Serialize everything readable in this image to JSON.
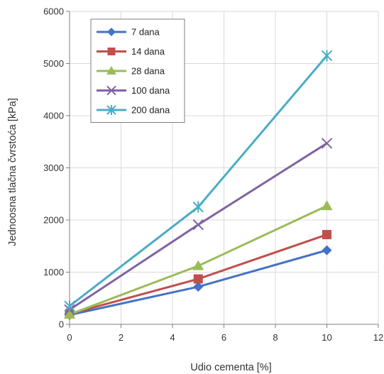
{
  "chart_data": {
    "type": "line",
    "xlabel": "Udio cementa [%]",
    "ylabel": "Jednoosna tlačna čvrstoća [kPa]",
    "xlim": [
      0,
      12
    ],
    "ylim": [
      0,
      6000
    ],
    "xticks": [
      0,
      2,
      4,
      6,
      8,
      10,
      12
    ],
    "yticks": [
      0,
      1000,
      2000,
      3000,
      4000,
      5000,
      6000
    ],
    "grid": true,
    "legend_position": "top-left",
    "x": [
      0,
      5,
      10
    ],
    "series": [
      {
        "name": "7 dana",
        "color": "#4472C4",
        "marker": "diamond",
        "values": [
          180,
          720,
          1420
        ]
      },
      {
        "name": "14 dana",
        "color": "#C0504D",
        "marker": "square",
        "values": [
          200,
          870,
          1720
        ]
      },
      {
        "name": "28 dana",
        "color": "#9BBB59",
        "marker": "triangle",
        "values": [
          190,
          1120,
          2270
        ]
      },
      {
        "name": "100 dana",
        "color": "#8064A2",
        "marker": "x",
        "values": [
          280,
          1910,
          3470
        ]
      },
      {
        "name": "200 dana",
        "color": "#4BACC6",
        "marker": "star",
        "values": [
          350,
          2250,
          5150
        ]
      }
    ]
  }
}
